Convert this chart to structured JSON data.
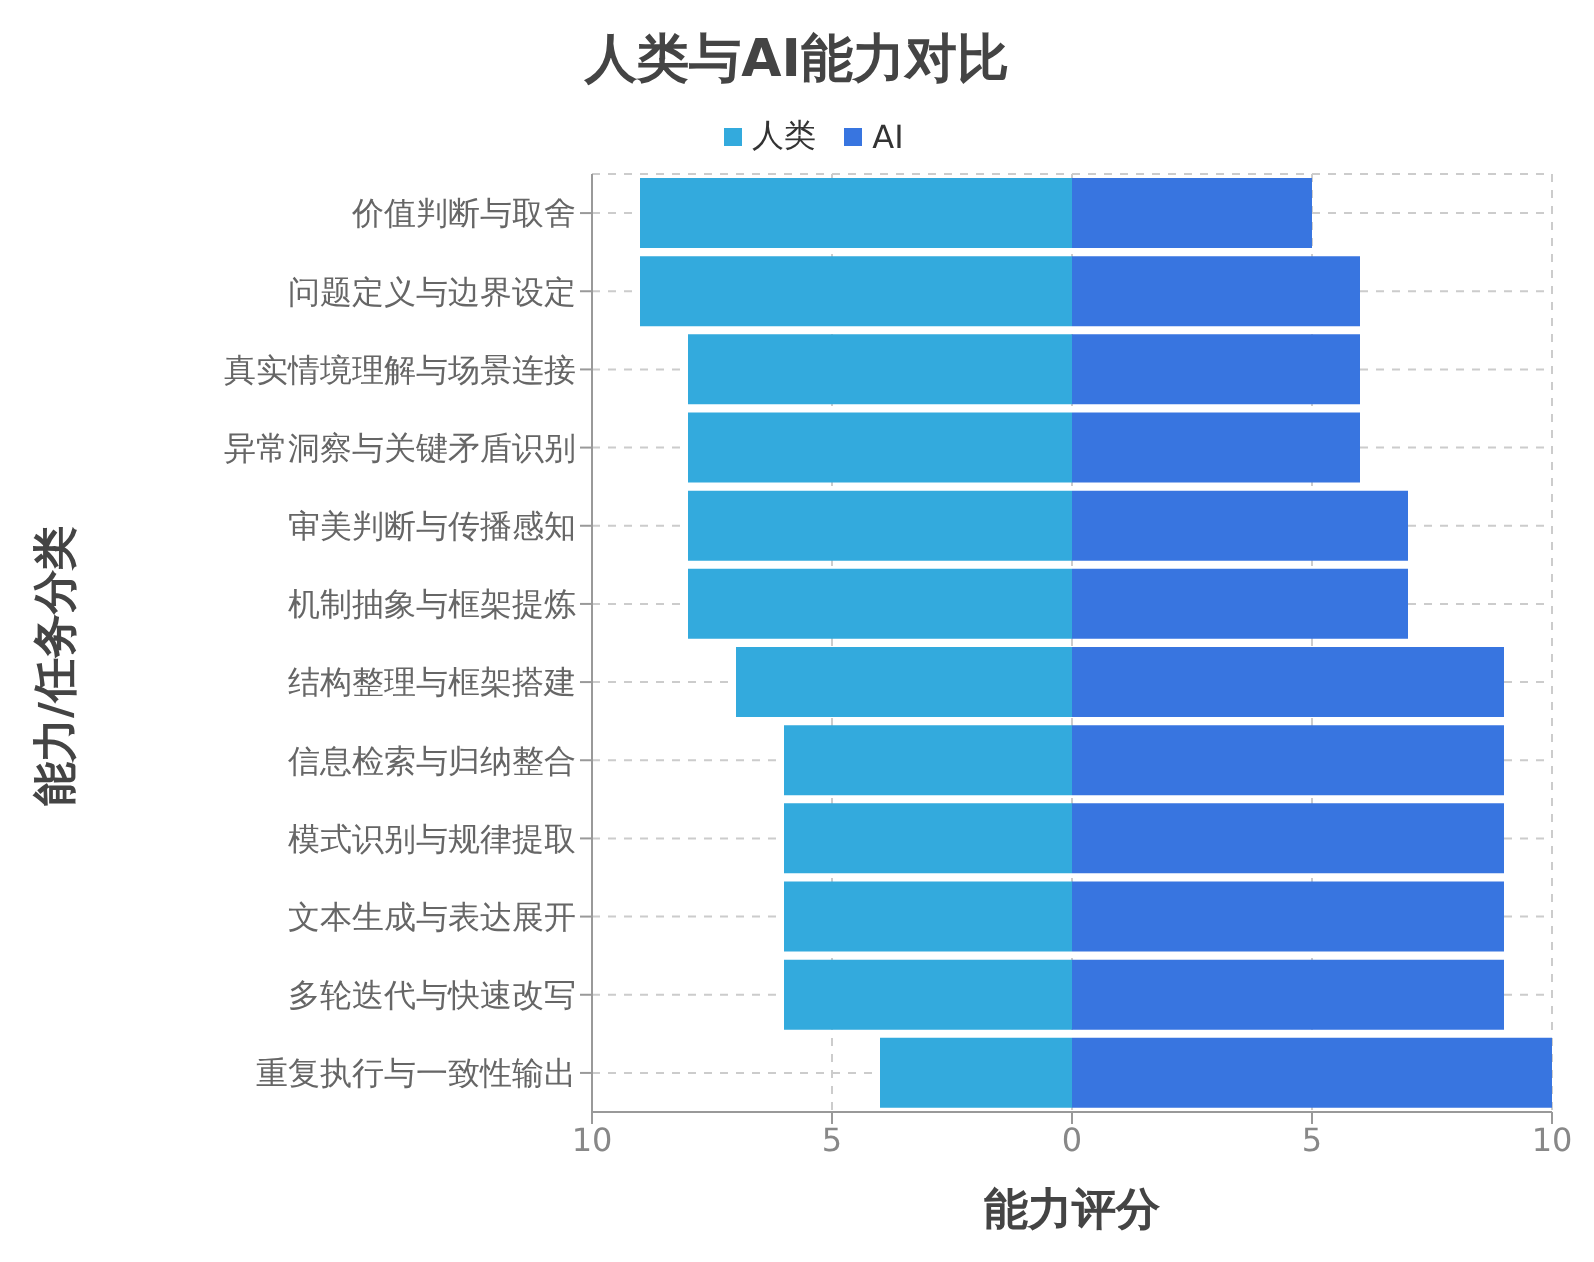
{
  "chart_data": {
    "type": "bar",
    "orientation": "horizontal",
    "stacked": true,
    "title": "人类与AI能力对比",
    "xlabel": "能力评分",
    "ylabel": "能力/任务分类",
    "categories": [
      "价值判断与取舍",
      "问题定义与边界设定",
      "真实情境理解与场景连接",
      "异常洞察与关键矛盾识别",
      "审美判断与传播感知",
      "机制抽象与框架提炼",
      "结构整理与框架搭建",
      "信息检索与归纳整合",
      "模式识别与规律提取",
      "文本生成与表达展开",
      "多轮迭代与快速改写",
      "重复执行与一致性输出"
    ],
    "series": [
      {
        "name": "人类",
        "color": "#33aadd",
        "values": [
          -9,
          -9,
          -8,
          -8,
          -8,
          -8,
          -7,
          -6,
          -6,
          -6,
          -6,
          -4
        ]
      },
      {
        "name": "AI",
        "color": "#3875e0",
        "values": [
          5,
          6,
          6,
          6,
          7,
          7,
          9,
          9,
          9,
          9,
          9,
          10
        ]
      }
    ],
    "xlim": [
      -10,
      10
    ],
    "xticks": [
      {
        "value": -10,
        "label": "10"
      },
      {
        "value": -5,
        "label": "5"
      },
      0,
      5,
      10
    ],
    "grid": true,
    "legend": "top"
  }
}
